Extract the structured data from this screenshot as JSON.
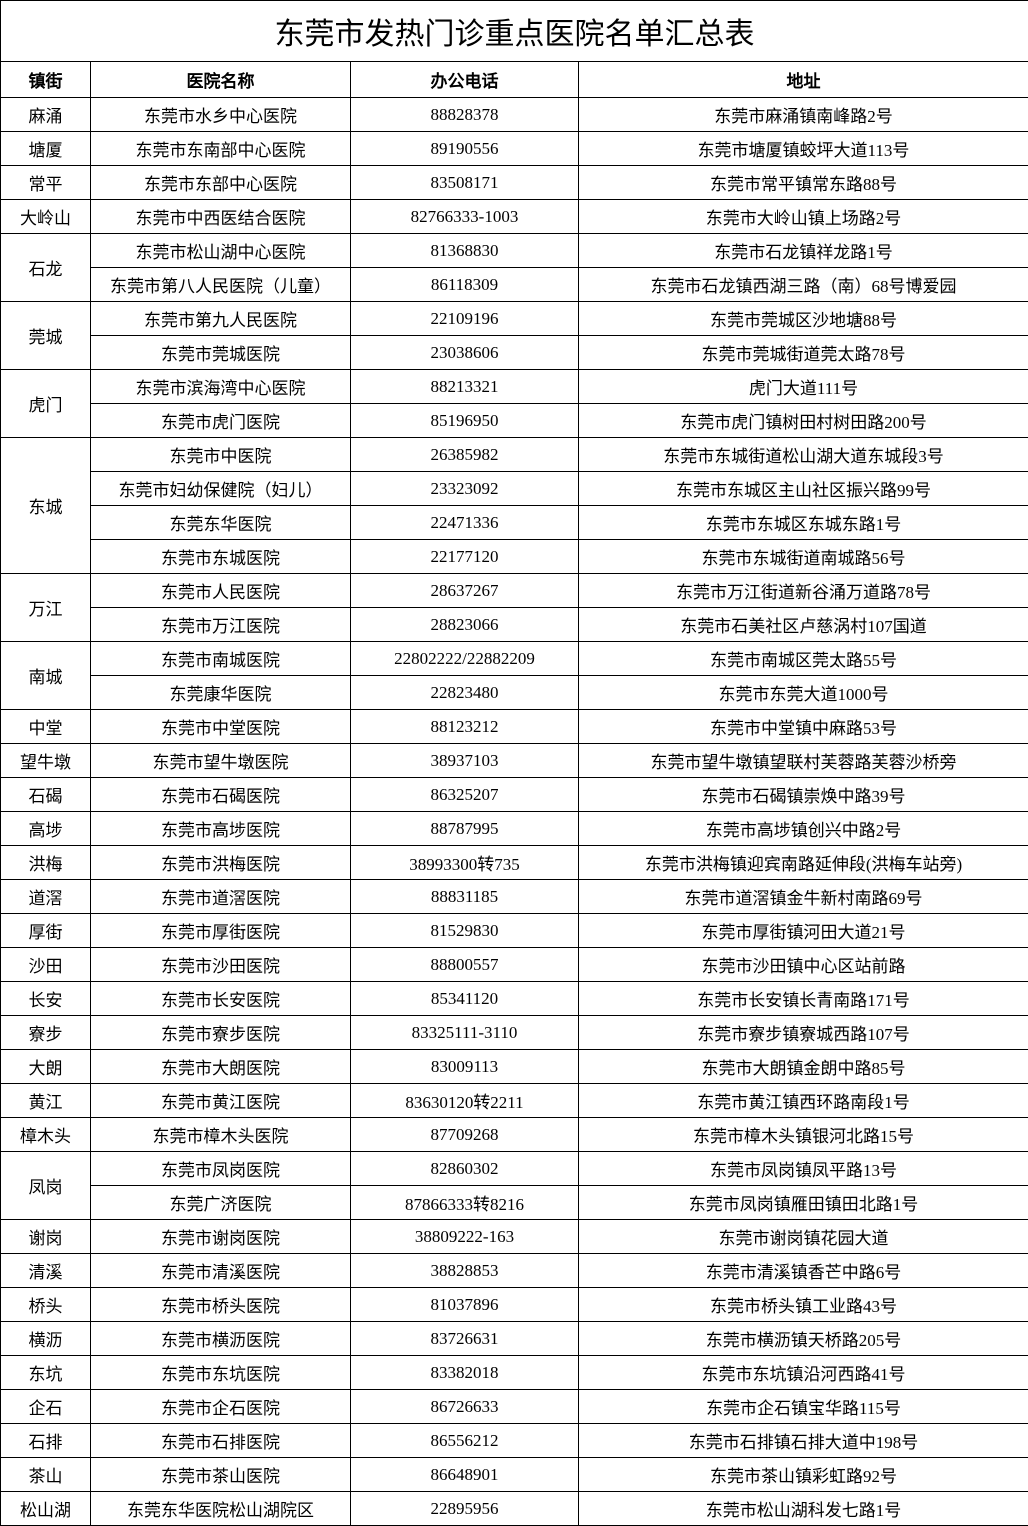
{
  "title": "东莞市发热门诊重点医院名单汇总表",
  "headers": {
    "town": "镇街",
    "hospital": "医院名称",
    "phone": "办公电话",
    "address": "地址"
  },
  "groups": [
    {
      "town": "麻涌",
      "rows": [
        {
          "hospital": "东莞市水乡中心医院",
          "phone": "88828378",
          "address": "东莞市麻涌镇南峰路2号"
        }
      ]
    },
    {
      "town": "塘厦",
      "rows": [
        {
          "hospital": "东莞市东南部中心医院",
          "phone": "89190556",
          "address": "东莞市塘厦镇蛟坪大道113号"
        }
      ]
    },
    {
      "town": "常平",
      "rows": [
        {
          "hospital": "东莞市东部中心医院",
          "phone": "83508171",
          "address": "东莞市常平镇常东路88号"
        }
      ]
    },
    {
      "town": "大岭山",
      "rows": [
        {
          "hospital": "东莞市中西医结合医院",
          "phone": "82766333-1003",
          "address": "东莞市大岭山镇上场路2号"
        }
      ]
    },
    {
      "town": "石龙",
      "rows": [
        {
          "hospital": "东莞市松山湖中心医院",
          "phone": "81368830",
          "address": "东莞市石龙镇祥龙路1号"
        },
        {
          "hospital": "东莞市第八人民医院（儿童）",
          "phone": "86118309",
          "address": "东莞市石龙镇西湖三路（南）68号博爱园"
        }
      ]
    },
    {
      "town": "莞城",
      "rows": [
        {
          "hospital": "东莞市第九人民医院",
          "phone": "22109196",
          "address": "东莞市莞城区沙地塘88号"
        },
        {
          "hospital": "东莞市莞城医院",
          "phone": "23038606",
          "address": "东莞市莞城街道莞太路78号"
        }
      ]
    },
    {
      "town": "虎门",
      "rows": [
        {
          "hospital": "东莞市滨海湾中心医院",
          "phone": "88213321",
          "address": "虎门大道111号"
        },
        {
          "hospital": "东莞市虎门医院",
          "phone": "85196950",
          "address": "东莞市虎门镇树田村树田路200号"
        }
      ]
    },
    {
      "town": "东城",
      "rows": [
        {
          "hospital": "东莞市中医院",
          "phone": "26385982",
          "address": "东莞市东城街道松山湖大道东城段3号"
        },
        {
          "hospital": "东莞市妇幼保健院（妇儿）",
          "phone": "23323092",
          "address": "东莞市东城区主山社区振兴路99号"
        },
        {
          "hospital": "东莞东华医院",
          "phone": "22471336",
          "address": "东莞市东城区东城东路1号"
        },
        {
          "hospital": "东莞市东城医院",
          "phone": "22177120",
          "address": "东莞市东城街道南城路56号"
        }
      ]
    },
    {
      "town": "万江",
      "rows": [
        {
          "hospital": "东莞市人民医院",
          "phone": "28637267",
          "address": "东莞市万江街道新谷涌万道路78号"
        },
        {
          "hospital": "东莞市万江医院",
          "phone": "28823066",
          "address": "东莞市石美社区卢慈涡村107国道"
        }
      ]
    },
    {
      "town": "南城",
      "rows": [
        {
          "hospital": "东莞市南城医院",
          "phone": "22802222/22882209",
          "address": "东莞市南城区莞太路55号"
        },
        {
          "hospital": "东莞康华医院",
          "phone": "22823480",
          "address": "东莞市东莞大道1000号"
        }
      ]
    },
    {
      "town": "中堂",
      "rows": [
        {
          "hospital": "东莞市中堂医院",
          "phone": "88123212",
          "address": "东莞市中堂镇中麻路53号"
        }
      ]
    },
    {
      "town": "望牛墩",
      "rows": [
        {
          "hospital": "东莞市望牛墩医院",
          "phone": "38937103",
          "address": "东莞市望牛墩镇望联村芙蓉路芙蓉沙桥旁"
        }
      ]
    },
    {
      "town": "石碣",
      "rows": [
        {
          "hospital": "东莞市石碣医院",
          "phone": "86325207",
          "address": "东莞市石碣镇崇焕中路39号"
        }
      ]
    },
    {
      "town": "高埗",
      "rows": [
        {
          "hospital": "东莞市高埗医院",
          "phone": "88787995",
          "address": "东莞市高埗镇创兴中路2号"
        }
      ]
    },
    {
      "town": "洪梅",
      "rows": [
        {
          "hospital": "东莞市洪梅医院",
          "phone": "38993300转735",
          "address": "东莞市洪梅镇迎宾南路延伸段(洪梅车站旁)"
        }
      ]
    },
    {
      "town": "道滘",
      "rows": [
        {
          "hospital": "东莞市道滘医院",
          "phone": "88831185",
          "address": "东莞市道滘镇金牛新村南路69号"
        }
      ]
    },
    {
      "town": "厚街",
      "rows": [
        {
          "hospital": "东莞市厚街医院",
          "phone": "81529830",
          "address": "东莞市厚街镇河田大道21号"
        }
      ]
    },
    {
      "town": "沙田",
      "rows": [
        {
          "hospital": "东莞市沙田医院",
          "phone": "88800557",
          "address": "东莞市沙田镇中心区站前路"
        }
      ]
    },
    {
      "town": "长安",
      "rows": [
        {
          "hospital": "东莞市长安医院",
          "phone": "85341120",
          "address": "东莞市长安镇长青南路171号"
        }
      ]
    },
    {
      "town": "寮步",
      "rows": [
        {
          "hospital": "东莞市寮步医院",
          "phone": "83325111-3110",
          "address": "东莞市寮步镇寮城西路107号"
        }
      ]
    },
    {
      "town": "大朗",
      "rows": [
        {
          "hospital": "东莞市大朗医院",
          "phone": "83009113",
          "address": "东莞市大朗镇金朗中路85号"
        }
      ]
    },
    {
      "town": "黄江",
      "rows": [
        {
          "hospital": "东莞市黄江医院",
          "phone": "83630120转2211",
          "address": "东莞市黄江镇西环路南段1号"
        }
      ]
    },
    {
      "town": "樟木头",
      "rows": [
        {
          "hospital": "东莞市樟木头医院",
          "phone": "87709268",
          "address": "东莞市樟木头镇银河北路15号"
        }
      ]
    },
    {
      "town": "凤岗",
      "rows": [
        {
          "hospital": "东莞市凤岗医院",
          "phone": "82860302",
          "address": "东莞市凤岗镇凤平路13号"
        },
        {
          "hospital": "东莞广济医院",
          "phone": "87866333转8216",
          "address": "东莞市凤岗镇雁田镇田北路1号"
        }
      ]
    },
    {
      "town": "谢岗",
      "rows": [
        {
          "hospital": "东莞市谢岗医院",
          "phone": "38809222-163",
          "address": "东莞市谢岗镇花园大道"
        }
      ]
    },
    {
      "town": "清溪",
      "rows": [
        {
          "hospital": "东莞市清溪医院",
          "phone": "38828853",
          "address": "东莞市清溪镇香芒中路6号"
        }
      ]
    },
    {
      "town": "桥头",
      "rows": [
        {
          "hospital": "东莞市桥头医院",
          "phone": "81037896",
          "address": "东莞市桥头镇工业路43号"
        }
      ]
    },
    {
      "town": "横沥",
      "rows": [
        {
          "hospital": "东莞市横沥医院",
          "phone": "83726631",
          "address": "东莞市横沥镇天桥路205号"
        }
      ]
    },
    {
      "town": "东坑",
      "rows": [
        {
          "hospital": "东莞市东坑医院",
          "phone": "83382018",
          "address": "东莞市东坑镇沿河西路41号"
        }
      ]
    },
    {
      "town": "企石",
      "rows": [
        {
          "hospital": "东莞市企石医院",
          "phone": "86726633",
          "address": "东莞市企石镇宝华路115号"
        }
      ]
    },
    {
      "town": "石排",
      "rows": [
        {
          "hospital": "东莞市石排医院",
          "phone": "86556212",
          "address": "东莞市石排镇石排大道中198号"
        }
      ]
    },
    {
      "town": "茶山",
      "rows": [
        {
          "hospital": "东莞市茶山医院",
          "phone": "86648901",
          "address": "东莞市茶山镇彩虹路92号"
        }
      ]
    },
    {
      "town": "松山湖",
      "rows": [
        {
          "hospital": "东莞东华医院松山湖院区",
          "phone": "22895956",
          "address": "东莞市松山湖科发七路1号"
        }
      ]
    }
  ],
  "colors": {
    "border": "#000000",
    "background": "#ffffff",
    "text": "#000000"
  },
  "column_widths": {
    "town": 90,
    "hospital": 260,
    "phone": 228,
    "address": 450
  },
  "typography": {
    "title_fontsize": 30,
    "header_fontsize": 17,
    "cell_fontsize": 17,
    "font_family": "SimSun"
  }
}
